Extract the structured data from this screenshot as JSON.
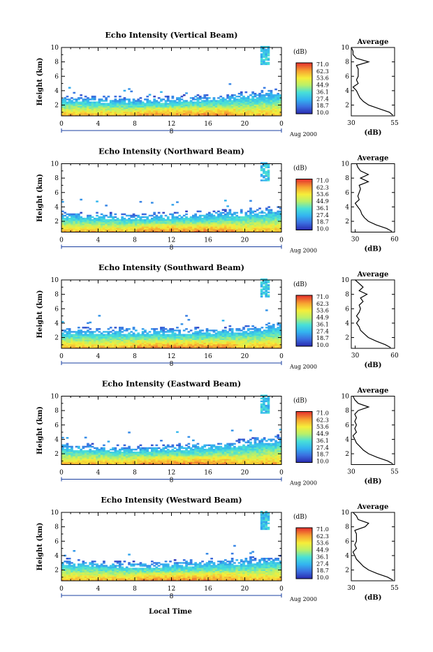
{
  "figure": {
    "xaxis_label": "Local Time",
    "date_label": "Aug 2000",
    "day_marker": "8",
    "cbar_unit": "(dB)",
    "cbar_ticks": [
      "71.0",
      "62.3",
      "53.6",
      "44.9",
      "36.1",
      "27.4",
      "18.7",
      "10.0"
    ],
    "avg_title": "Average",
    "avg_xlabel": "(dB)",
    "ylabel": "Height (km)"
  },
  "chart_data": [
    {
      "type": "heatmap",
      "title": "Echo Intensity (Vertical Beam)",
      "xlabel": "",
      "ylabel": "Height (km)",
      "xlim": [
        0,
        24
      ],
      "ylim": [
        0.5,
        10
      ],
      "xticks": [
        "0",
        "4",
        "8",
        "12",
        "16",
        "20",
        "0"
      ],
      "yticks": [
        "2",
        "4",
        "6",
        "8",
        "10"
      ],
      "colorbar": {
        "unit": "(dB)",
        "range": [
          10.0,
          71.0
        ],
        "ticks": [
          71.0,
          62.3,
          53.6,
          44.9,
          36.1,
          27.4,
          18.7,
          10.0
        ]
      },
      "echo_top_km": [
        3.1,
        3.0,
        3.0,
        2.9,
        2.9,
        2.8,
        2.8,
        2.7,
        2.7,
        2.7,
        2.8,
        2.8,
        2.9,
        2.9,
        3.0,
        3.0,
        3.1,
        3.1,
        3.2,
        3.3,
        3.4,
        3.5,
        3.6,
        3.7,
        3.8
      ],
      "average_profile": {
        "title": "Average",
        "xlabel": "(dB)",
        "xlim": [
          30,
          55
        ],
        "xticks": [
          "30",
          "55"
        ],
        "ylim": [
          0.5,
          10
        ],
        "height_km": [
          0.6,
          1.0,
          1.5,
          2.0,
          2.5,
          3.0,
          3.5,
          4.0,
          4.5,
          5.0,
          5.5,
          6.0,
          6.5,
          7.0,
          7.5,
          8.0,
          8.5,
          9.0,
          9.5,
          10.0
        ],
        "db": [
          54,
          52,
          46,
          40,
          37,
          35,
          34,
          33,
          31,
          34,
          33,
          34,
          34,
          34,
          33,
          40,
          33,
          31,
          31,
          30
        ]
      }
    },
    {
      "type": "heatmap",
      "title": "Echo Intensity (Northward Beam)",
      "xlabel": "",
      "ylabel": "Height (km)",
      "xlim": [
        0,
        24
      ],
      "ylim": [
        0.5,
        10
      ],
      "xticks": [
        "0",
        "4",
        "8",
        "12",
        "16",
        "20",
        "0"
      ],
      "yticks": [
        "2",
        "4",
        "6",
        "8",
        "10"
      ],
      "colorbar": {
        "unit": "(dB)",
        "range": [
          10.0,
          71.0
        ],
        "ticks": [
          71.0,
          62.3,
          53.6,
          44.9,
          36.1,
          27.4,
          18.7,
          10.0
        ]
      },
      "echo_top_km": [
        3.0,
        3.0,
        2.9,
        2.9,
        2.8,
        2.8,
        2.7,
        2.7,
        2.7,
        2.7,
        2.8,
        2.8,
        2.9,
        2.9,
        3.0,
        3.0,
        3.1,
        3.1,
        3.2,
        3.3,
        3.3,
        3.4,
        3.5,
        3.6,
        3.6
      ],
      "average_profile": {
        "title": "Average",
        "xlabel": "(dB)",
        "xlim": [
          27,
          60
        ],
        "xticks": [
          "30",
          "60"
        ],
        "ylim": [
          0.5,
          10
        ],
        "height_km": [
          0.6,
          1.0,
          1.5,
          2.0,
          2.5,
          3.0,
          3.5,
          4.0,
          4.5,
          5.0,
          5.5,
          6.0,
          6.5,
          7.0,
          7.5,
          8.0,
          8.5,
          9.0,
          9.5,
          10.0
        ],
        "db": [
          58,
          54,
          46,
          40,
          37,
          35,
          34,
          32,
          30,
          33,
          32,
          33,
          34,
          33,
          40,
          34,
          40,
          34,
          32,
          31
        ]
      }
    },
    {
      "type": "heatmap",
      "title": "Echo Intensity (Southward Beam)",
      "xlabel": "",
      "ylabel": "Height (km)",
      "xlim": [
        0,
        24
      ],
      "ylim": [
        0.5,
        10
      ],
      "xticks": [
        "0",
        "4",
        "8",
        "12",
        "16",
        "20",
        "0"
      ],
      "yticks": [
        "2",
        "4",
        "6",
        "8",
        "10"
      ],
      "colorbar": {
        "unit": "(dB)",
        "range": [
          10.0,
          71.0
        ],
        "ticks": [
          71.0,
          62.3,
          53.6,
          44.9,
          36.1,
          27.4,
          18.7,
          10.0
        ]
      },
      "echo_top_km": [
        3.0,
        3.0,
        3.0,
        2.9,
        2.9,
        2.9,
        3.0,
        3.0,
        3.0,
        3.0,
        3.0,
        3.0,
        3.0,
        3.0,
        3.0,
        3.0,
        3.0,
        3.1,
        3.1,
        3.2,
        3.2,
        3.3,
        3.5,
        3.7,
        3.8
      ],
      "average_profile": {
        "title": "Average",
        "xlabel": "(dB)",
        "xlim": [
          27,
          60
        ],
        "xticks": [
          "30",
          "60"
        ],
        "ylim": [
          0.5,
          10
        ],
        "height_km": [
          0.6,
          1.0,
          1.5,
          2.0,
          2.5,
          3.0,
          3.5,
          4.0,
          4.5,
          5.0,
          5.5,
          6.0,
          6.5,
          7.0,
          7.5,
          8.0,
          8.5,
          9.0,
          9.5,
          10.0
        ],
        "db": [
          57,
          53,
          46,
          40,
          37,
          34,
          33,
          31,
          33,
          31,
          33,
          34,
          33,
          36,
          34,
          39,
          33,
          36,
          33,
          30
        ]
      }
    },
    {
      "type": "heatmap",
      "title": "Echo Intensity (Eastward Beam)",
      "xlabel": "",
      "ylabel": "Height (km)",
      "xlim": [
        0,
        24
      ],
      "ylim": [
        0.5,
        10
      ],
      "xticks": [
        "0",
        "4",
        "8",
        "12",
        "16",
        "20",
        "0"
      ],
      "yticks": [
        "2",
        "4",
        "6",
        "8",
        "10"
      ],
      "colorbar": {
        "unit": "(dB)",
        "range": [
          10.0,
          71.0
        ],
        "ticks": [
          71.0,
          62.3,
          53.6,
          44.9,
          36.1,
          27.4,
          18.7,
          10.0
        ]
      },
      "echo_top_km": [
        3.2,
        3.1,
        3.0,
        3.0,
        2.9,
        2.9,
        2.8,
        2.8,
        2.8,
        2.8,
        2.9,
        2.9,
        3.0,
        3.0,
        3.1,
        3.2,
        3.3,
        3.3,
        3.4,
        3.5,
        3.6,
        3.8,
        4.0,
        4.1,
        4.2
      ],
      "average_profile": {
        "title": "Average",
        "xlabel": "(dB)",
        "xlim": [
          30,
          55
        ],
        "xticks": [
          "30",
          "55"
        ],
        "ylim": [
          0.5,
          10
        ],
        "height_km": [
          0.6,
          1.0,
          1.5,
          2.0,
          2.5,
          3.0,
          3.5,
          4.0,
          4.5,
          5.0,
          5.5,
          6.0,
          6.5,
          7.0,
          7.5,
          8.0,
          8.5,
          9.0,
          9.5,
          10.0
        ],
        "db": [
          54,
          51,
          45,
          40,
          37,
          35,
          33,
          32,
          31,
          33,
          32,
          33,
          32,
          33,
          32,
          34,
          40,
          34,
          32,
          31
        ]
      }
    },
    {
      "type": "heatmap",
      "title": "Echo Intensity (Westward Beam)",
      "xlabel": "Local Time",
      "ylabel": "Height (km)",
      "xlim": [
        0,
        24
      ],
      "ylim": [
        0.5,
        10
      ],
      "xticks": [
        "0",
        "4",
        "8",
        "12",
        "16",
        "20",
        "0"
      ],
      "yticks": [
        "2",
        "4",
        "6",
        "8",
        "10"
      ],
      "colorbar": {
        "unit": "(dB)",
        "range": [
          10.0,
          71.0
        ],
        "ticks": [
          71.0,
          62.3,
          53.6,
          44.9,
          36.1,
          27.4,
          18.7,
          10.0
        ]
      },
      "echo_top_km": [
        3.2,
        3.1,
        3.0,
        3.0,
        2.9,
        2.9,
        2.8,
        2.8,
        2.8,
        2.8,
        2.8,
        2.9,
        2.9,
        3.0,
        3.0,
        3.1,
        3.1,
        3.2,
        3.2,
        3.3,
        3.3,
        3.4,
        3.5,
        3.6,
        3.7
      ],
      "average_profile": {
        "title": "Average",
        "xlabel": "(dB)",
        "xlim": [
          30,
          55
        ],
        "xticks": [
          "30",
          "55"
        ],
        "ylim": [
          0.5,
          10
        ],
        "height_km": [
          0.6,
          1.0,
          1.5,
          2.0,
          2.5,
          3.0,
          3.5,
          4.0,
          4.5,
          5.0,
          5.5,
          6.0,
          6.5,
          7.0,
          7.5,
          8.0,
          8.5,
          9.0,
          9.5,
          10.0
        ],
        "db": [
          54,
          51,
          45,
          40,
          37,
          35,
          33,
          32,
          31,
          33,
          32,
          33,
          33,
          33,
          32,
          38,
          40,
          34,
          33,
          31
        ]
      }
    }
  ]
}
